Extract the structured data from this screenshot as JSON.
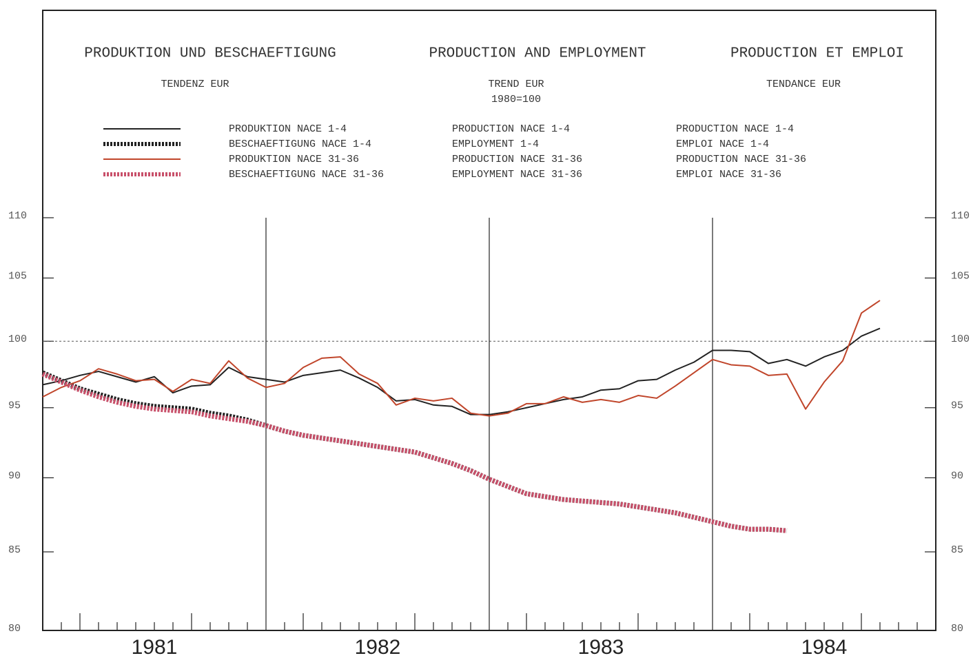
{
  "chart_data": {
    "type": "line",
    "titles": [
      "PRODUKTION UND BESCHAEFTIGUNG",
      "PRODUCTION AND EMPLOYMENT",
      "PRODUCTION ET EMPLOI"
    ],
    "subtitles": [
      "TENDENZ EUR",
      "TREND EUR",
      "TENDANCE EUR"
    ],
    "base_note": "1980=100",
    "log_scale": true,
    "reference_line": 100,
    "ylim": [
      80,
      110
    ],
    "yticks": [
      80,
      85,
      90,
      95,
      100,
      105,
      110
    ],
    "xlim": [
      1981,
      1985
    ],
    "xticks": [
      {
        "value": 1981.5,
        "label": "1981"
      },
      {
        "value": 1982.5,
        "label": "1982"
      },
      {
        "value": 1983.5,
        "label": "1983"
      },
      {
        "value": 1984.5,
        "label": "1984"
      }
    ],
    "x": [
      1981,
      1981.083,
      1981.167,
      1981.25,
      1981.333,
      1981.417,
      1981.5,
      1981.583,
      1981.667,
      1981.75,
      1981.833,
      1981.917,
      1982,
      1982.083,
      1982.167,
      1982.25,
      1982.333,
      1982.417,
      1982.5,
      1982.583,
      1982.667,
      1982.75,
      1982.833,
      1982.917,
      1983,
      1983.083,
      1983.167,
      1983.25,
      1983.333,
      1983.417,
      1983.5,
      1983.583,
      1983.667,
      1983.75,
      1983.833,
      1983.917,
      1984,
      1984.083,
      1984.167,
      1984.25,
      1984.333,
      1984.417,
      1984.5,
      1984.583,
      1984.667,
      1984.75
    ],
    "series": [
      {
        "name": "PRODUKTION NACE 1-4",
        "name_en": "PRODUCTION NACE 1-4",
        "name_fr": "PRODUCTION NACE 1-4",
        "color": "#222222",
        "style": "solid",
        "values": [
          96.7,
          97.0,
          97.4,
          97.7,
          97.3,
          96.9,
          97.3,
          96.1,
          96.6,
          96.7,
          98.0,
          97.3,
          97.1,
          96.9,
          97.4,
          97.6,
          97.8,
          97.2,
          96.5,
          95.5,
          95.6,
          95.2,
          95.1,
          94.5,
          94.5,
          94.7,
          95.0,
          95.3,
          95.6,
          95.8,
          96.3,
          96.4,
          97.0,
          97.1,
          97.8,
          98.4,
          99.3,
          99.3,
          99.2,
          98.3,
          98.6,
          98.1,
          98.8,
          99.3,
          100.4,
          101.0
        ]
      },
      {
        "name": "BESCHAEFTIGUNG NACE 1-4",
        "name_en": "EMPLOYMENT 1-4",
        "name_fr": "EMPLOI NACE 1-4",
        "color": "#222222",
        "style": "dashed",
        "values": [
          97.6,
          97.0,
          96.4,
          96.0,
          95.6,
          95.3,
          95.1,
          95.0,
          94.9,
          94.6,
          94.4,
          94.1,
          93.7,
          93.3,
          93.0,
          92.8,
          92.6,
          92.4,
          92.2,
          92.0,
          91.8,
          91.4,
          91.0,
          90.5,
          89.9,
          89.4,
          88.9,
          88.7,
          88.5,
          88.4,
          88.3,
          88.2,
          88.0,
          87.8,
          87.6,
          87.3,
          87.0,
          86.7,
          86.5,
          86.5,
          86.4,
          null,
          null,
          null,
          null,
          null
        ]
      },
      {
        "name": "PRODUKTION NACE 31-36",
        "name_en": "PRODUCTION NACE 31-36",
        "name_fr": "PRODUCTION NACE 31-36",
        "color": "#c0452a",
        "style": "solid",
        "values": [
          95.8,
          96.5,
          97.0,
          97.9,
          97.5,
          97.0,
          97.1,
          96.2,
          97.1,
          96.8,
          98.5,
          97.2,
          96.5,
          96.8,
          98.0,
          98.7,
          98.8,
          97.5,
          96.8,
          95.2,
          95.7,
          95.5,
          95.7,
          94.6,
          94.4,
          94.6,
          95.3,
          95.3,
          95.8,
          95.4,
          95.6,
          95.4,
          95.9,
          95.7,
          96.6,
          97.6,
          98.6,
          98.2,
          98.1,
          97.4,
          97.5,
          94.9,
          96.9,
          98.5,
          102.2,
          103.2
        ]
      },
      {
        "name": "BESCHAEFTIGUNG NACE 31-36",
        "name_en": "EMPLOYMENT NACE 31-36",
        "name_fr": "EMPLOI NACE 31-36",
        "color": "#c8506a",
        "style": "dashed",
        "values": [
          97.5,
          96.9,
          96.3,
          95.8,
          95.4,
          95.1,
          94.9,
          94.8,
          94.7,
          94.4,
          94.2,
          94.0,
          93.7,
          93.3,
          93.0,
          92.8,
          92.6,
          92.4,
          92.2,
          92.0,
          91.8,
          91.4,
          91.0,
          90.5,
          89.9,
          89.4,
          88.9,
          88.7,
          88.5,
          88.4,
          88.3,
          88.2,
          88.0,
          87.8,
          87.6,
          87.3,
          87.0,
          86.7,
          86.5,
          86.5,
          86.4,
          null,
          null,
          null,
          null,
          null
        ]
      }
    ]
  }
}
